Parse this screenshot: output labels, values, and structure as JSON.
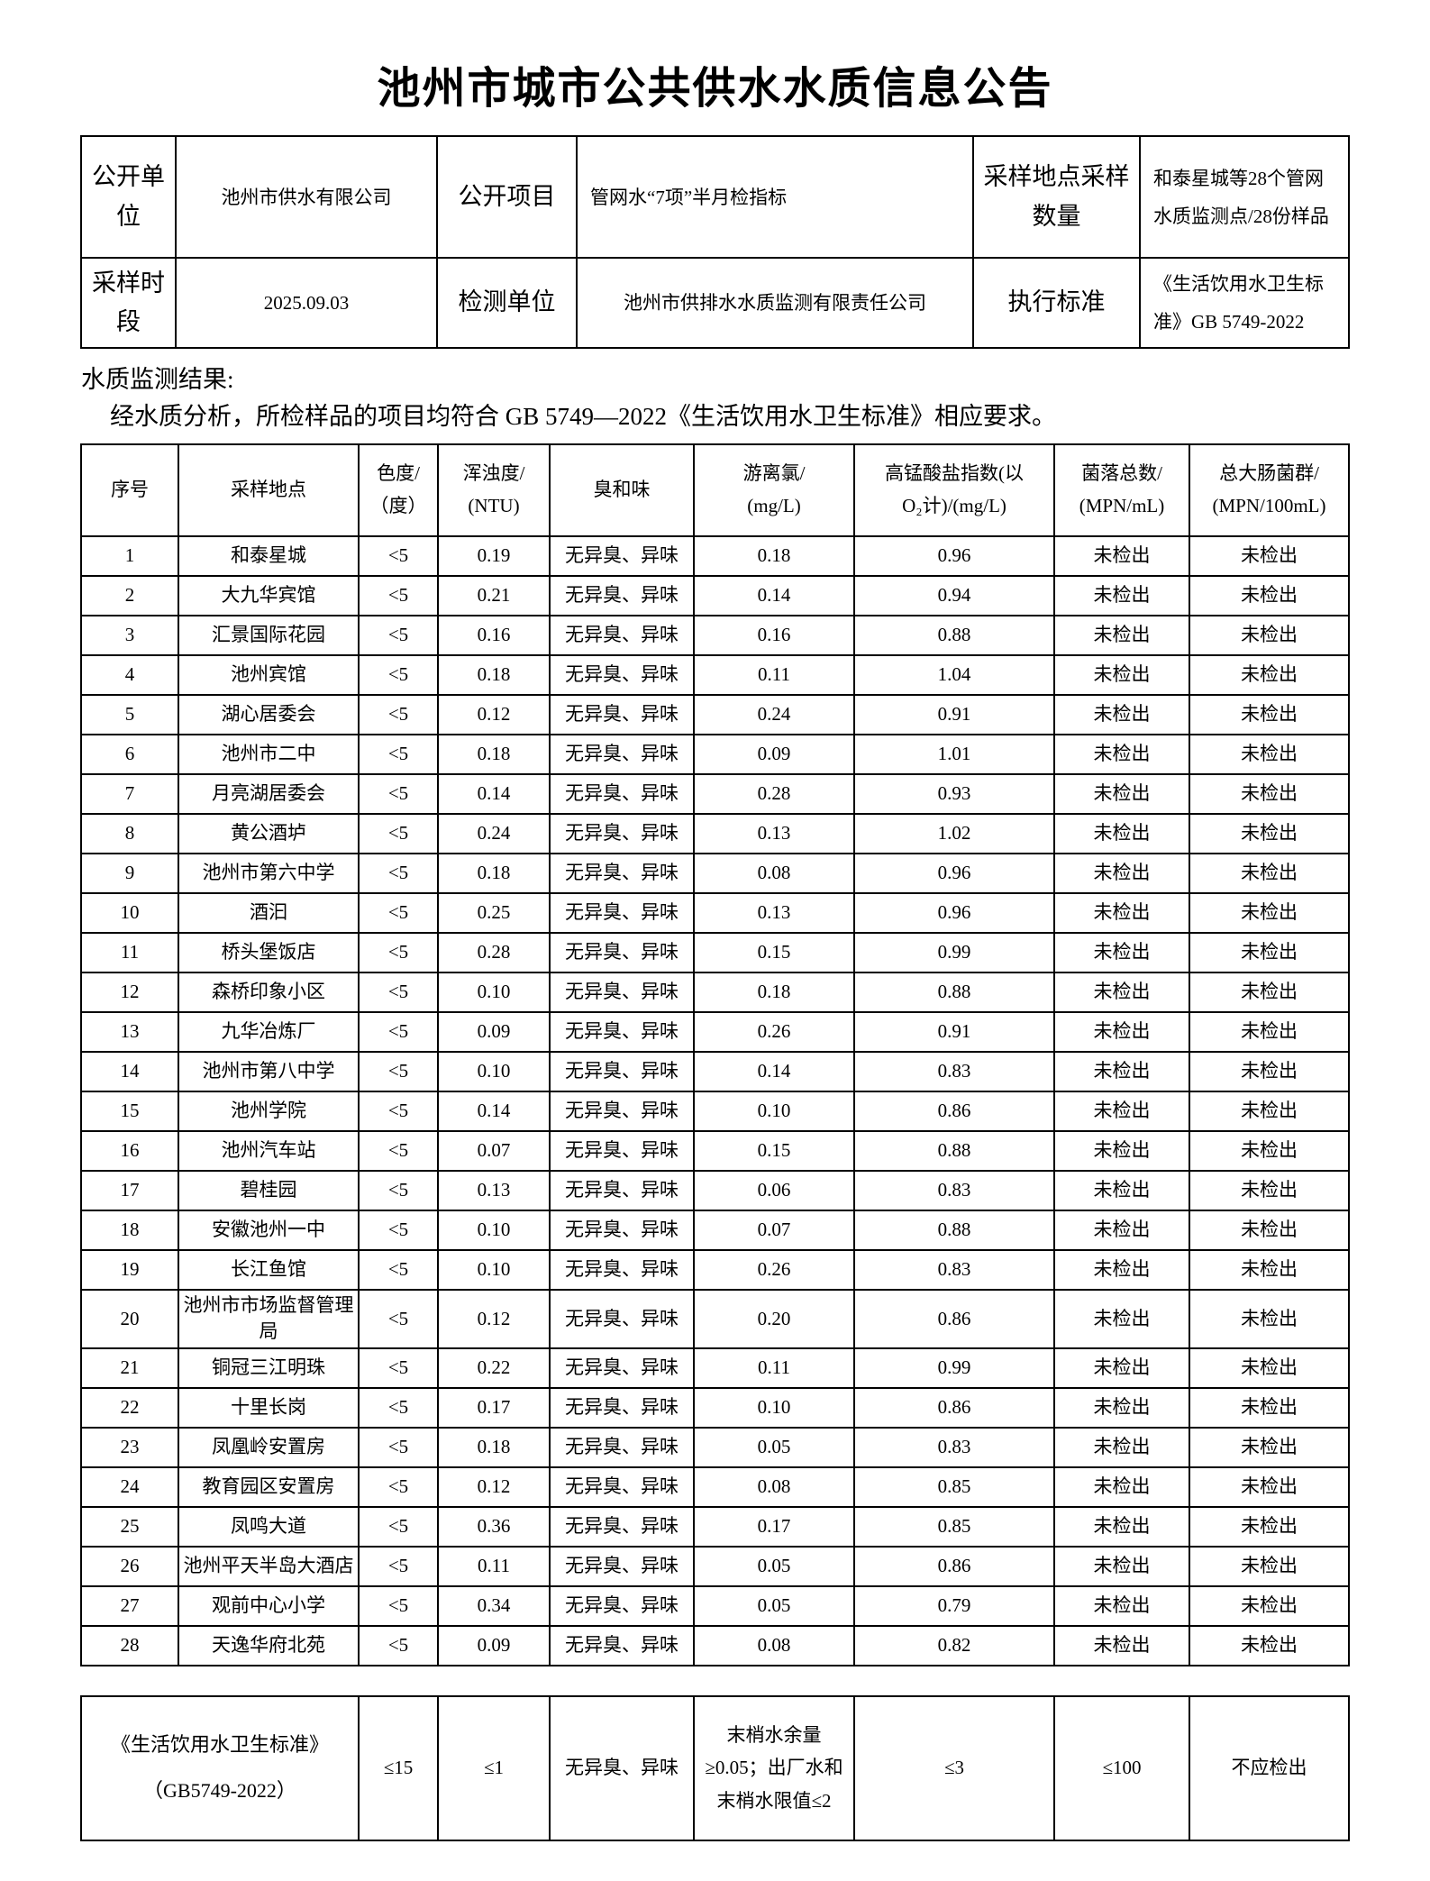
{
  "title": "池州市城市公共供水水质信息公告",
  "info": {
    "r1c1": "公开单位",
    "r1v1": "池州市供水有限公司",
    "r1c2": "公开项目",
    "r1v2": "管网水“7项”半月检指标",
    "r1c3": "采样地点采样数量",
    "r1v3": "和泰星城等28个管网水质监测点/28份样品",
    "r2c1": "采样时段",
    "r2v1": "2025.09.03",
    "r2c2": "检测单位",
    "r2v2": "池州市供排水水质监测有限责任公司",
    "r2c3": "执行标准",
    "r2v3": "《生活饮用水卫生标准》GB 5749-2022"
  },
  "result_note": {
    "line1": "水质监测结果:",
    "line2": "经水质分析，所检样品的项目均符合 GB 5749—2022《生活饮用水卫生标准》相应要求。"
  },
  "monitor_table": {
    "headers": [
      "序号",
      "采样地点",
      "色度/\n（度）",
      "浑浊度/\n(NTU)",
      "臭和味",
      "游离氯/\n(mg/L)",
      "高锰酸盐指数(以\nO₂计)/(mg/L)",
      "菌落总数/\n(MPN/mL)",
      "总大肠菌群/\n(MPN/100mL)"
    ],
    "rows": [
      [
        "1",
        "和泰星城",
        "<5",
        "0.19",
        "无异臭、异味",
        "0.18",
        "0.96",
        "未检出",
        "未检出"
      ],
      [
        "2",
        "大九华宾馆",
        "<5",
        "0.21",
        "无异臭、异味",
        "0.14",
        "0.94",
        "未检出",
        "未检出"
      ],
      [
        "3",
        "汇景国际花园",
        "<5",
        "0.16",
        "无异臭、异味",
        "0.16",
        "0.88",
        "未检出",
        "未检出"
      ],
      [
        "4",
        "池州宾馆",
        "<5",
        "0.18",
        "无异臭、异味",
        "0.11",
        "1.04",
        "未检出",
        "未检出"
      ],
      [
        "5",
        "湖心居委会",
        "<5",
        "0.12",
        "无异臭、异味",
        "0.24",
        "0.91",
        "未检出",
        "未检出"
      ],
      [
        "6",
        "池州市二中",
        "<5",
        "0.18",
        "无异臭、异味",
        "0.09",
        "1.01",
        "未检出",
        "未检出"
      ],
      [
        "7",
        "月亮湖居委会",
        "<5",
        "0.14",
        "无异臭、异味",
        "0.28",
        "0.93",
        "未检出",
        "未检出"
      ],
      [
        "8",
        "黄公酒垆",
        "<5",
        "0.24",
        "无异臭、异味",
        "0.13",
        "1.02",
        "未检出",
        "未检出"
      ],
      [
        "9",
        "池州市第六中学",
        "<5",
        "0.18",
        "无异臭、异味",
        "0.08",
        "0.96",
        "未检出",
        "未检出"
      ],
      [
        "10",
        "酒汩",
        "<5",
        "0.25",
        "无异臭、异味",
        "0.13",
        "0.96",
        "未检出",
        "未检出"
      ],
      [
        "11",
        "桥头堡饭店",
        "<5",
        "0.28",
        "无异臭、异味",
        "0.15",
        "0.99",
        "未检出",
        "未检出"
      ],
      [
        "12",
        "森桥印象小区",
        "<5",
        "0.10",
        "无异臭、异味",
        "0.18",
        "0.88",
        "未检出",
        "未检出"
      ],
      [
        "13",
        "九华冶炼厂",
        "<5",
        "0.09",
        "无异臭、异味",
        "0.26",
        "0.91",
        "未检出",
        "未检出"
      ],
      [
        "14",
        "池州市第八中学",
        "<5",
        "0.10",
        "无异臭、异味",
        "0.14",
        "0.83",
        "未检出",
        "未检出"
      ],
      [
        "15",
        "池州学院",
        "<5",
        "0.14",
        "无异臭、异味",
        "0.10",
        "0.86",
        "未检出",
        "未检出"
      ],
      [
        "16",
        "池州汽车站",
        "<5",
        "0.07",
        "无异臭、异味",
        "0.15",
        "0.88",
        "未检出",
        "未检出"
      ],
      [
        "17",
        "碧桂园",
        "<5",
        "0.13",
        "无异臭、异味",
        "0.06",
        "0.83",
        "未检出",
        "未检出"
      ],
      [
        "18",
        "安徽池州一中",
        "<5",
        "0.10",
        "无异臭、异味",
        "0.07",
        "0.88",
        "未检出",
        "未检出"
      ],
      [
        "19",
        "长江鱼馆",
        "<5",
        "0.10",
        "无异臭、异味",
        "0.26",
        "0.83",
        "未检出",
        "未检出"
      ],
      [
        "20",
        "池州市市场监督管理局",
        "<5",
        "0.12",
        "无异臭、异味",
        "0.20",
        "0.86",
        "未检出",
        "未检出"
      ],
      [
        "21",
        "铜冠三江明珠",
        "<5",
        "0.22",
        "无异臭、异味",
        "0.11",
        "0.99",
        "未检出",
        "未检出"
      ],
      [
        "22",
        "十里长岗",
        "<5",
        "0.17",
        "无异臭、异味",
        "0.10",
        "0.86",
        "未检出",
        "未检出"
      ],
      [
        "23",
        "凤凰岭安置房",
        "<5",
        "0.18",
        "无异臭、异味",
        "0.05",
        "0.83",
        "未检出",
        "未检出"
      ],
      [
        "24",
        "教育园区安置房",
        "<5",
        "0.12",
        "无异臭、异味",
        "0.08",
        "0.85",
        "未检出",
        "未检出"
      ],
      [
        "25",
        "凤鸣大道",
        "<5",
        "0.36",
        "无异臭、异味",
        "0.17",
        "0.85",
        "未检出",
        "未检出"
      ],
      [
        "26",
        "池州平天半岛大酒店",
        "<5",
        "0.11",
        "无异臭、异味",
        "0.05",
        "0.86",
        "未检出",
        "未检出"
      ],
      [
        "27",
        "观前中心小学",
        "<5",
        "0.34",
        "无异臭、异味",
        "0.05",
        "0.79",
        "未检出",
        "未检出"
      ],
      [
        "28",
        "天逸华府北苑",
        "<5",
        "0.09",
        "无异臭、异味",
        "0.08",
        "0.82",
        "未检出",
        "未检出"
      ]
    ]
  },
  "standard": {
    "name_line1": "《生活饮用水卫生标准》",
    "name_line2": "（GB5749-2022）",
    "values": [
      "≤15",
      "≤1",
      "无异臭、异味",
      "末梢水余量≥0.05；出厂水和末梢水限值≤2",
      "≤3",
      "≤100",
      "不应检出"
    ]
  }
}
